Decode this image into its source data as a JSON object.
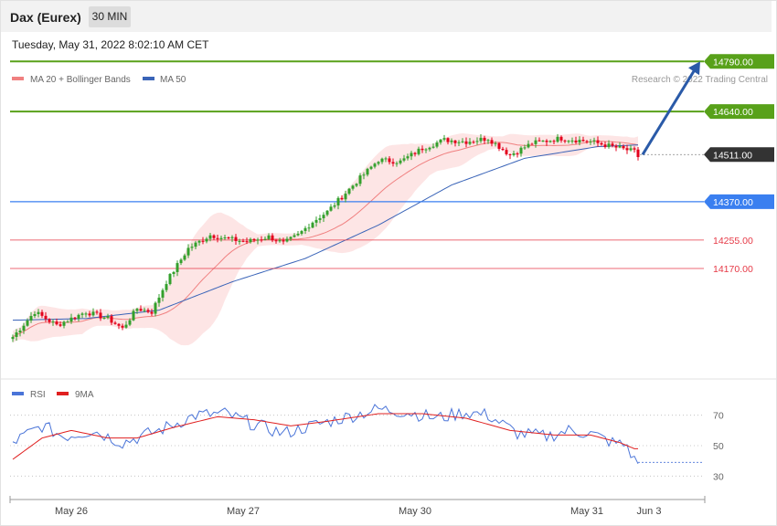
{
  "header": {
    "title": "Dax (Eurex)",
    "timeframe": "30 MIN",
    "datetime": "Tuesday, May 31, 2022 8:02:10 AM CET"
  },
  "legend": {
    "ma20_label": "MA 20 + Bollinger Bands",
    "ma50_label": "MA 50",
    "copyright": "Research © 2022 Trading Central",
    "rsi_label": "RSI",
    "ma9_label": "9MA"
  },
  "colors": {
    "up": "#33a02c",
    "down": "#e3001b",
    "resistance": "#58a11a",
    "support": "#3a7ff0",
    "minor_support": "#e63946",
    "current": "#333333",
    "ma20": "#f08080",
    "bollinger_fill": "#fde0e0",
    "ma50": "#3a64b8",
    "arrow": "#2a5aa8",
    "rsi": "#4a74d8",
    "rsi_ma": "#e02020"
  },
  "chart_data": [
    {
      "type": "candlestick",
      "timeframe": "30 MIN",
      "ylim": [
        13880,
        14810
      ],
      "price_levels": [
        {
          "label": "14790.00",
          "value": 14790,
          "kind": "resistance"
        },
        {
          "label": "14640.00",
          "value": 14640,
          "kind": "resistance"
        },
        {
          "label": "14511.00",
          "value": 14511,
          "kind": "current"
        },
        {
          "label": "14370.00",
          "value": 14370,
          "kind": "support"
        },
        {
          "label": "14255.00",
          "value": 14255,
          "kind": "minor-support"
        },
        {
          "label": "14170.00",
          "value": 14170,
          "kind": "minor-support"
        }
      ],
      "anchors": [
        {
          "x": 0,
          "y": 13965
        },
        {
          "x": 6,
          "y": 14040
        },
        {
          "x": 12,
          "y": 14000
        },
        {
          "x": 20,
          "y": 14040
        },
        {
          "x": 26,
          "y": 14020
        },
        {
          "x": 30,
          "y": 13990
        },
        {
          "x": 34,
          "y": 14050
        },
        {
          "x": 38,
          "y": 14040
        },
        {
          "x": 42,
          "y": 14130
        },
        {
          "x": 48,
          "y": 14230
        },
        {
          "x": 54,
          "y": 14270
        },
        {
          "x": 58,
          "y": 14260
        },
        {
          "x": 64,
          "y": 14250
        },
        {
          "x": 70,
          "y": 14265
        },
        {
          "x": 74,
          "y": 14245
        },
        {
          "x": 78,
          "y": 14270
        },
        {
          "x": 82,
          "y": 14310
        },
        {
          "x": 86,
          "y": 14340
        },
        {
          "x": 90,
          "y": 14385
        },
        {
          "x": 94,
          "y": 14430
        },
        {
          "x": 100,
          "y": 14495
        },
        {
          "x": 106,
          "y": 14490
        },
        {
          "x": 112,
          "y": 14530
        },
        {
          "x": 118,
          "y": 14555
        },
        {
          "x": 124,
          "y": 14550
        },
        {
          "x": 130,
          "y": 14560
        },
        {
          "x": 136,
          "y": 14510
        },
        {
          "x": 142,
          "y": 14545
        },
        {
          "x": 150,
          "y": 14560
        },
        {
          "x": 158,
          "y": 14550
        },
        {
          "x": 164,
          "y": 14535
        },
        {
          "x": 170,
          "y": 14520
        },
        {
          "x": 171,
          "y": 14505
        }
      ],
      "ma50": [
        {
          "x": 0,
          "y": 14015
        },
        {
          "x": 20,
          "y": 14020
        },
        {
          "x": 40,
          "y": 14045
        },
        {
          "x": 60,
          "y": 14130
        },
        {
          "x": 80,
          "y": 14200
        },
        {
          "x": 100,
          "y": 14300
        },
        {
          "x": 120,
          "y": 14420
        },
        {
          "x": 140,
          "y": 14500
        },
        {
          "x": 160,
          "y": 14535
        },
        {
          "x": 171,
          "y": 14540
        }
      ],
      "projection": {
        "from": 14511,
        "to": 14790
      },
      "x_ticks": [
        {
          "label": "May 26",
          "x": 16
        },
        {
          "label": "May 27",
          "x": 63
        },
        {
          "label": "May 30",
          "x": 110
        },
        {
          "label": "May 31",
          "x": 157
        },
        {
          "label": "Jun 3",
          "x": 174
        }
      ]
    },
    {
      "type": "line",
      "title": "RSI",
      "ylim": [
        20,
        80
      ],
      "y_ticks": [
        30,
        50,
        70
      ],
      "rsi_anchors": [
        {
          "x": 0,
          "y": 52
        },
        {
          "x": 8,
          "y": 63
        },
        {
          "x": 14,
          "y": 56
        },
        {
          "x": 22,
          "y": 60
        },
        {
          "x": 30,
          "y": 52
        },
        {
          "x": 40,
          "y": 60
        },
        {
          "x": 50,
          "y": 70
        },
        {
          "x": 58,
          "y": 71
        },
        {
          "x": 66,
          "y": 64
        },
        {
          "x": 74,
          "y": 58
        },
        {
          "x": 80,
          "y": 62
        },
        {
          "x": 90,
          "y": 68
        },
        {
          "x": 100,
          "y": 74
        },
        {
          "x": 108,
          "y": 72
        },
        {
          "x": 116,
          "y": 68
        },
        {
          "x": 124,
          "y": 72
        },
        {
          "x": 130,
          "y": 70
        },
        {
          "x": 138,
          "y": 58
        },
        {
          "x": 146,
          "y": 56
        },
        {
          "x": 152,
          "y": 60
        },
        {
          "x": 158,
          "y": 58
        },
        {
          "x": 164,
          "y": 52
        },
        {
          "x": 168,
          "y": 50
        },
        {
          "x": 170,
          "y": 40
        }
      ],
      "ma_anchors": [
        {
          "x": 0,
          "y": 41
        },
        {
          "x": 8,
          "y": 55
        },
        {
          "x": 16,
          "y": 60
        },
        {
          "x": 26,
          "y": 55
        },
        {
          "x": 34,
          "y": 55
        },
        {
          "x": 44,
          "y": 62
        },
        {
          "x": 56,
          "y": 69
        },
        {
          "x": 66,
          "y": 67
        },
        {
          "x": 76,
          "y": 63
        },
        {
          "x": 86,
          "y": 66
        },
        {
          "x": 100,
          "y": 71
        },
        {
          "x": 112,
          "y": 71
        },
        {
          "x": 124,
          "y": 68
        },
        {
          "x": 136,
          "y": 60
        },
        {
          "x": 148,
          "y": 57
        },
        {
          "x": 158,
          "y": 57
        },
        {
          "x": 166,
          "y": 52
        },
        {
          "x": 170,
          "y": 48
        }
      ],
      "last_value": 39
    }
  ]
}
